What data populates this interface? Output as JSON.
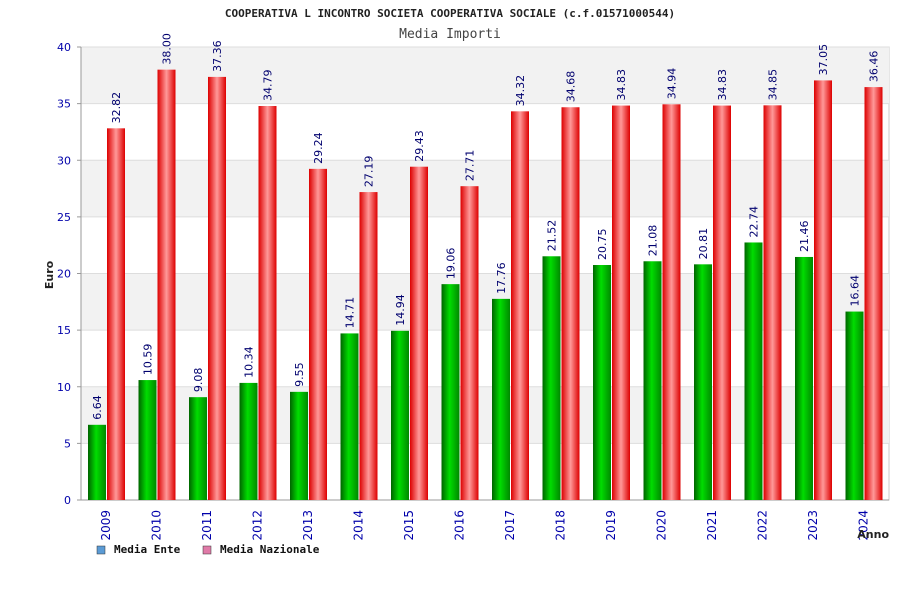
{
  "chart_data": {
    "type": "bar",
    "title": "COOPERATIVA L INCONTRO SOCIETA COOPERATIVA SOCIALE (c.f.01571000544)",
    "subtitle": "Media Importi",
    "xlabel": "Anno",
    "ylabel": "Euro",
    "ylim": [
      0,
      40
    ],
    "yticks": [
      "0",
      "5",
      "10",
      "15",
      "20",
      "25",
      "30",
      "35",
      "40"
    ],
    "categories": [
      "2009",
      "2010",
      "2011",
      "2012",
      "2013",
      "2014",
      "2015",
      "2016",
      "2017",
      "2018",
      "2019",
      "2020",
      "2021",
      "2022",
      "2023",
      "2024"
    ],
    "series": [
      {
        "name": "Media Ente",
        "values": [
          6.64,
          10.59,
          9.08,
          10.34,
          9.55,
          14.71,
          14.94,
          19.06,
          17.76,
          21.52,
          20.75,
          21.08,
          20.81,
          22.74,
          21.46,
          16.64
        ],
        "labels": [
          "6.64",
          "10.59",
          "9.08",
          "10.34",
          "9.55",
          "14.71",
          "14.94",
          "19.06",
          "17.76",
          "21.52",
          "20.75",
          "21.08",
          "20.81",
          "22.74",
          "21.46",
          "16.64"
        ]
      },
      {
        "name": "Media Nazionale",
        "values": [
          32.82,
          38.0,
          37.36,
          34.79,
          29.24,
          27.19,
          29.43,
          27.71,
          34.32,
          34.68,
          34.83,
          34.94,
          34.83,
          34.85,
          37.05,
          36.46
        ],
        "labels": [
          "32.82",
          "38.00",
          "37.36",
          "34.79",
          "29.24",
          "27.19",
          "29.43",
          "27.71",
          "34.32",
          "34.68",
          "34.83",
          "34.94",
          "34.83",
          "34.85",
          "37.05",
          "36.46"
        ]
      }
    ],
    "legend": [
      {
        "label": "Media Ente",
        "color": "#5b9bd5"
      },
      {
        "label": "Media Nazionale",
        "color": "#e07aa8"
      }
    ],
    "colors": {
      "ente": "#00a000",
      "nazionale": "#ee1111",
      "axis_text": "#0000aa",
      "band": "#f2f2f2"
    },
    "legend_position": "bottom-left",
    "grid": true
  }
}
